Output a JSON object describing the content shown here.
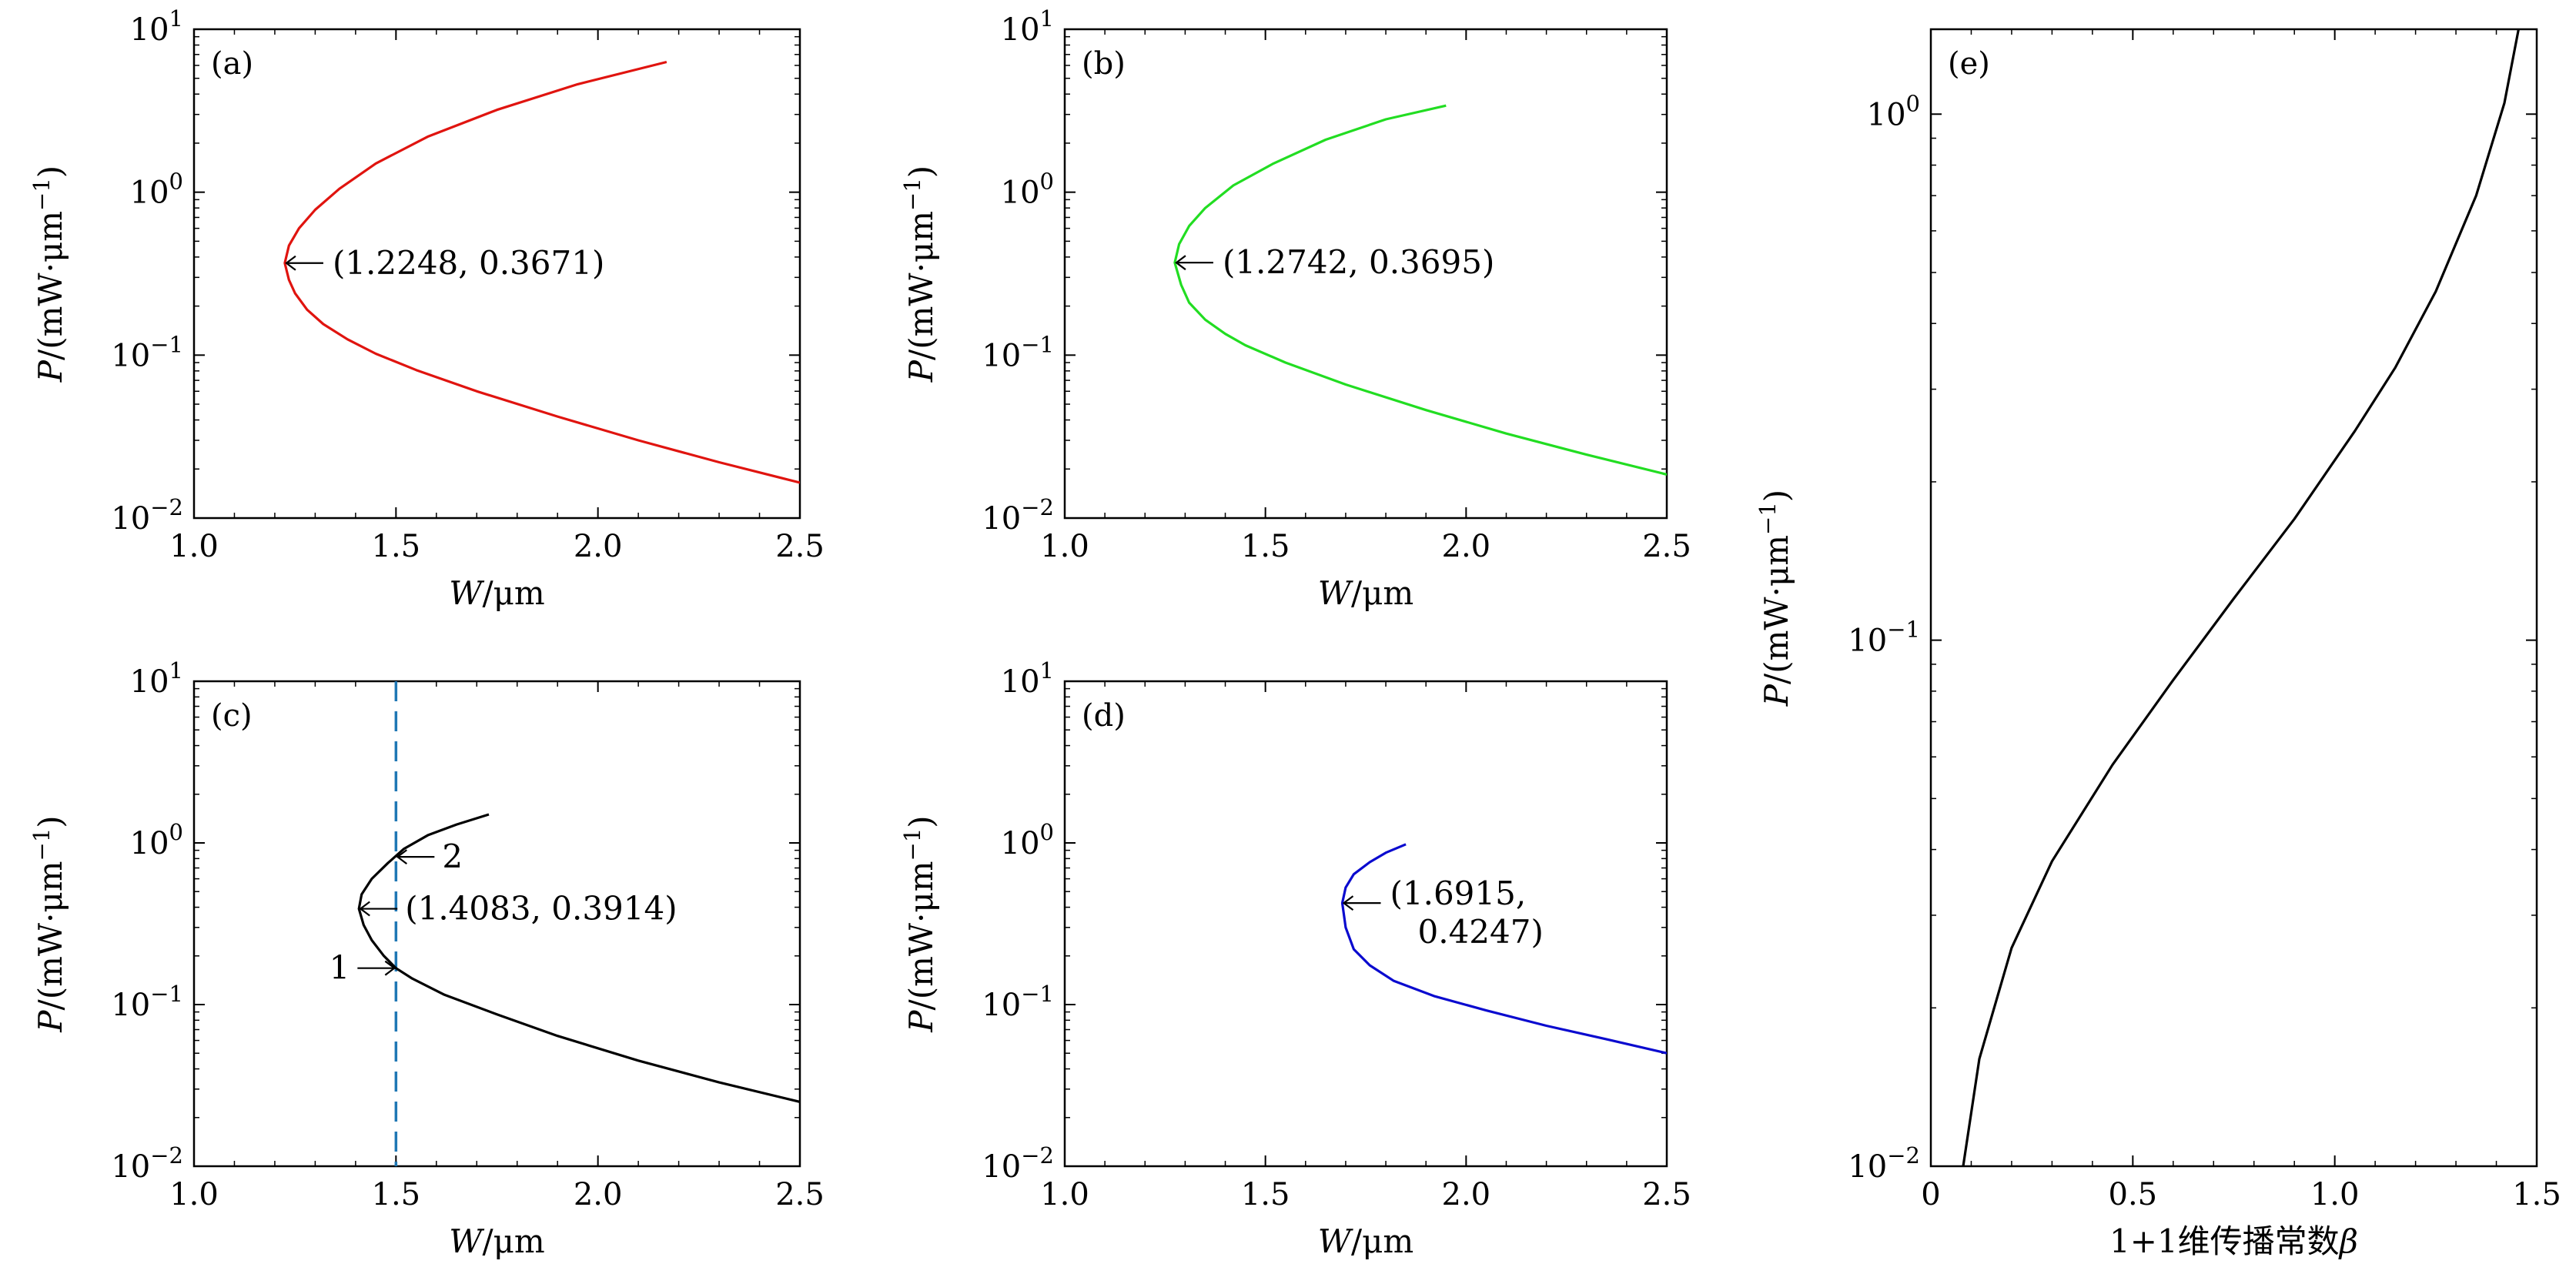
{
  "chart_data": [
    {
      "type": "line",
      "panel_label": "(a)",
      "xlabel": "W/μm",
      "ylabel": "P/(mW·μm⁻¹)",
      "xlim": [
        1.0,
        2.5
      ],
      "ylim": [
        0.01,
        10
      ],
      "yscale": "log",
      "xticks": [
        "1.0",
        "1.5",
        "2.0",
        "2.5"
      ],
      "yticks": [
        {
          "base": "10",
          "exp": "−2"
        },
        {
          "base": "10",
          "exp": "−1"
        },
        {
          "base": "10",
          "exp": "0"
        },
        {
          "base": "10",
          "exp": "1"
        }
      ],
      "color": "#e0140f",
      "series": [
        {
          "x": [
            2.5,
            2.3,
            2.1,
            1.9,
            1.7,
            1.55,
            1.45,
            1.38,
            1.32,
            1.28,
            1.25,
            1.235,
            1.2248,
            1.235,
            1.26,
            1.3,
            1.36,
            1.45,
            1.58,
            1.75,
            1.95,
            2.17
          ],
          "y": [
            0.0165,
            0.022,
            0.03,
            0.042,
            0.06,
            0.081,
            0.102,
            0.125,
            0.155,
            0.19,
            0.24,
            0.29,
            0.3671,
            0.47,
            0.6,
            0.78,
            1.05,
            1.5,
            2.2,
            3.2,
            4.6,
            6.3
          ]
        }
      ],
      "annotation": {
        "text": "(1.2248, 0.3671)",
        "x": 1.2248,
        "y": 0.3671
      }
    },
    {
      "type": "line",
      "panel_label": "(b)",
      "xlabel": "W/μm",
      "ylabel": "P/(mW·μm⁻¹)",
      "xlim": [
        1.0,
        2.5
      ],
      "ylim": [
        0.01,
        10
      ],
      "yscale": "log",
      "xticks": [
        "1.0",
        "1.5",
        "2.0",
        "2.5"
      ],
      "yticks": [
        {
          "base": "10",
          "exp": "−2"
        },
        {
          "base": "10",
          "exp": "−1"
        },
        {
          "base": "10",
          "exp": "0"
        },
        {
          "base": "10",
          "exp": "1"
        }
      ],
      "color": "#22dd22",
      "series": [
        {
          "x": [
            2.5,
            2.3,
            2.1,
            1.9,
            1.7,
            1.55,
            1.45,
            1.4,
            1.35,
            1.31,
            1.29,
            1.2742,
            1.285,
            1.31,
            1.35,
            1.42,
            1.52,
            1.65,
            1.8,
            1.95
          ],
          "y": [
            0.0185,
            0.0245,
            0.033,
            0.046,
            0.066,
            0.09,
            0.115,
            0.135,
            0.165,
            0.21,
            0.27,
            0.3695,
            0.48,
            0.62,
            0.8,
            1.1,
            1.5,
            2.1,
            2.8,
            3.4
          ]
        }
      ],
      "annotation": {
        "text": "(1.2742, 0.3695)",
        "x": 1.2742,
        "y": 0.3695
      }
    },
    {
      "type": "line",
      "panel_label": "(c)",
      "xlabel": "W/μm",
      "ylabel": "P/(mW·μm⁻¹)",
      "xlim": [
        1.0,
        2.5
      ],
      "ylim": [
        0.01,
        10
      ],
      "yscale": "log",
      "xticks": [
        "1.0",
        "1.5",
        "2.0",
        "2.5"
      ],
      "yticks": [
        {
          "base": "10",
          "exp": "−2"
        },
        {
          "base": "10",
          "exp": "−1"
        },
        {
          "base": "10",
          "exp": "0"
        },
        {
          "base": "10",
          "exp": "1"
        }
      ],
      "color": "#000000",
      "series": [
        {
          "x": [
            2.5,
            2.3,
            2.1,
            1.9,
            1.75,
            1.62,
            1.54,
            1.5,
            1.47,
            1.44,
            1.42,
            1.4083,
            1.415,
            1.44,
            1.48,
            1.52,
            1.58,
            1.65,
            1.73
          ],
          "y": [
            0.025,
            0.033,
            0.045,
            0.064,
            0.087,
            0.115,
            0.145,
            0.168,
            0.2,
            0.25,
            0.31,
            0.3914,
            0.48,
            0.6,
            0.75,
            0.92,
            1.12,
            1.3,
            1.5
          ]
        }
      ],
      "vline": {
        "x": 1.5,
        "color": "#1f77b4"
      },
      "annotations": [
        {
          "text": "(1.4083, 0.3914)",
          "x": 1.4083,
          "y": 0.3914
        },
        {
          "text": "2",
          "x": 1.5,
          "y": 0.82
        },
        {
          "text": "1",
          "x": 1.5,
          "y": 0.168
        }
      ]
    },
    {
      "type": "line",
      "panel_label": "(d)",
      "xlabel": "W/μm",
      "ylabel": "P/(mW·μm⁻¹)",
      "xlim": [
        1.0,
        2.5
      ],
      "ylim": [
        0.01,
        10
      ],
      "yscale": "log",
      "xticks": [
        "1.0",
        "1.5",
        "2.0",
        "2.5"
      ],
      "yticks": [
        {
          "base": "10",
          "exp": "−2"
        },
        {
          "base": "10",
          "exp": "−1"
        },
        {
          "base": "10",
          "exp": "0"
        },
        {
          "base": "10",
          "exp": "1"
        }
      ],
      "color": "#0a0acf",
      "series": [
        {
          "x": [
            2.5,
            2.35,
            2.2,
            2.05,
            1.92,
            1.82,
            1.76,
            1.72,
            1.7,
            1.6915,
            1.7,
            1.72,
            1.76,
            1.8,
            1.85
          ],
          "y": [
            0.05,
            0.061,
            0.074,
            0.092,
            0.113,
            0.14,
            0.175,
            0.22,
            0.3,
            0.4247,
            0.53,
            0.64,
            0.76,
            0.87,
            0.98
          ]
        }
      ],
      "annotation": {
        "text_lines": [
          "(1.6915,",
          "0.4247)"
        ],
        "x": 1.6915,
        "y": 0.4247
      }
    },
    {
      "type": "line",
      "panel_label": "(e)",
      "xlabel": "1+1维传播常数β",
      "ylabel": "P/(mW·μm⁻¹)",
      "xlim": [
        0,
        1.5
      ],
      "ylim": [
        0.01,
        1.45
      ],
      "yscale": "log",
      "xticks": [
        "0",
        "0.5",
        "1.0",
        "1.5"
      ],
      "yticks": [
        {
          "base": "10",
          "exp": "−2"
        },
        {
          "base": "10",
          "exp": "−1"
        },
        {
          "base": "10",
          "exp": "0"
        }
      ],
      "color": "#000000",
      "series": [
        {
          "x": [
            0.08,
            0.12,
            0.2,
            0.3,
            0.45,
            0.6,
            0.75,
            0.9,
            1.05,
            1.15,
            1.25,
            1.35,
            1.42,
            1.455
          ],
          "y": [
            0.01,
            0.016,
            0.026,
            0.038,
            0.058,
            0.084,
            0.12,
            0.17,
            0.25,
            0.33,
            0.46,
            0.7,
            1.05,
            1.45
          ]
        }
      ]
    }
  ]
}
